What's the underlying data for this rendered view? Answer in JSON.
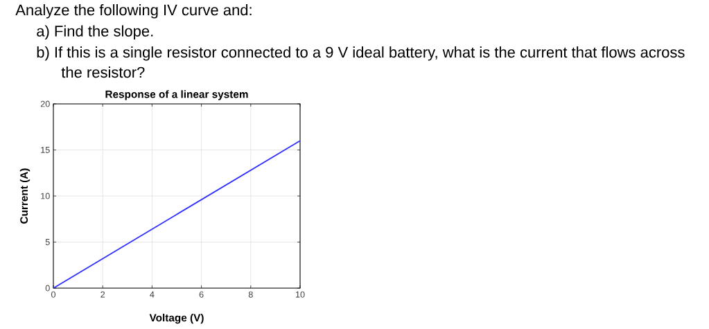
{
  "chart_data": {
    "type": "line",
    "title": "Response of a linear system",
    "xlabel": "Voltage (V)",
    "ylabel": "Current (A)",
    "annotations": [
      "Analyze the following IV curve and:",
      "a) Find the slope.",
      "b) If this is a single resistor connected to a 9 V ideal battery, what is the current that flows across the resistor?"
    ],
    "x": [
      0,
      10
    ],
    "series": [
      {
        "color": "#2f2fff",
        "values": [
          0,
          16
        ]
      }
    ],
    "xlim": [
      0,
      10
    ],
    "ylim": [
      0,
      20
    ],
    "xticks": [
      0,
      2,
      4,
      6,
      8,
      10
    ],
    "yticks": [
      0,
      5,
      10,
      15,
      20
    ],
    "grid": true,
    "marker": "none",
    "line_style": "solid"
  }
}
